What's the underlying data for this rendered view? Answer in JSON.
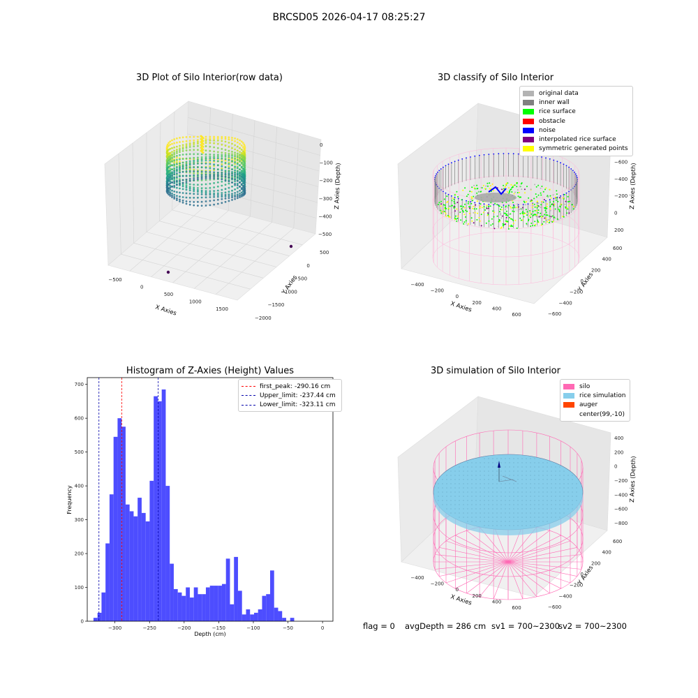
{
  "main_title": "BRCSD05 2026-04-17 08:25:27",
  "footer": {
    "flag": "flag = 0",
    "avg_depth": "avgDepth = 286 cm",
    "sv1": "sv1 = 700~2300",
    "sv2": "sv2 = 700~2300"
  },
  "chart_data": [
    {
      "type": "scatter",
      "title": "3D Plot of Silo Interior(row data)",
      "xlabel": "X Axies",
      "ylabel": "Y Axies",
      "zlabel": "Z Axies (Depth)",
      "x_ticks": [
        -500,
        0,
        500,
        1000,
        1500
      ],
      "y_ticks": [
        -2000,
        -1500,
        -1000,
        -500,
        0,
        500
      ],
      "z_ticks": [
        -500,
        -400,
        -300,
        -200,
        -100,
        0
      ],
      "xlim": [
        -700,
        1800
      ],
      "ylim": [
        -2000,
        700
      ],
      "zlim": [
        -560,
        50
      ],
      "colormap": "viridis",
      "outliers": [
        {
          "x": 450,
          "y": -1500,
          "z": -500
        },
        {
          "x": 500,
          "y": 700,
          "z": -500
        }
      ]
    },
    {
      "type": "scatter",
      "title": "3D classify of Silo Interior",
      "xlabel": "X Axies",
      "ylabel": "Y Axies",
      "zlabel": "Z Axies (Depth)",
      "x_ticks": [
        -400,
        -200,
        0,
        200,
        400,
        600
      ],
      "y_ticks": [
        -600,
        -400,
        -200,
        0,
        200,
        400,
        600
      ],
      "z_ticks": [
        -800,
        -600,
        -400,
        -200,
        0,
        200
      ],
      "legend": [
        {
          "label": "original data",
          "color": "#b3b3b3"
        },
        {
          "label": "inner wall",
          "color": "#808080"
        },
        {
          "label": "rice surface",
          "color": "#00ff00"
        },
        {
          "label": "obstacle",
          "color": "#ff0000"
        },
        {
          "label": "noise",
          "color": "#0000ff"
        },
        {
          "label": "interpolated rice surface",
          "color": "#800080"
        },
        {
          "label": "symmetric generated points",
          "color": "#ffff00"
        }
      ],
      "legend_position": "top-right"
    },
    {
      "type": "bar",
      "title": "Histogram of Z-Axies (Height) Values",
      "xlabel": "Depth (cm)",
      "ylabel": "Frequency",
      "bin_width": 5.8,
      "bin_start": -331,
      "values": [
        10,
        25,
        85,
        230,
        375,
        545,
        600,
        575,
        345,
        325,
        310,
        365,
        320,
        295,
        415,
        665,
        650,
        685,
        400,
        170,
        95,
        85,
        75,
        100,
        70,
        100,
        80,
        80,
        100,
        105,
        105,
        105,
        110,
        185,
        50,
        190,
        90,
        20,
        35,
        20,
        25,
        35,
        75,
        80,
        150,
        40,
        30,
        10,
        0,
        10
      ],
      "xlim": [
        -340,
        15
      ],
      "ylim": [
        0,
        720
      ],
      "x_ticks": [
        -300,
        -250,
        -200,
        -150,
        -100,
        -50,
        0
      ],
      "y_ticks": [
        0,
        100,
        200,
        300,
        400,
        500,
        600,
        700
      ],
      "bar_color": "#4d4dff",
      "vlines": [
        {
          "label": "first_peak: -290.16 cm",
          "x": -290.16,
          "color": "#ff0000"
        },
        {
          "label": "Upper_limit: -237.44 cm",
          "x": -237.44,
          "color": "#0000aa"
        },
        {
          "label": "Lower_limit: -323.11 cm",
          "x": -323.11,
          "color": "#0000aa"
        }
      ],
      "legend_position": "top-right"
    },
    {
      "type": "scatter",
      "title": "3D simulation of Silo Interior",
      "xlabel": "X Axies",
      "ylabel": "Y Axies",
      "zlabel": "Z Axies (Depth)",
      "x_ticks": [
        -400,
        -200,
        0,
        200,
        400,
        600
      ],
      "y_ticks": [
        -600,
        -400,
        -200,
        0,
        200,
        400,
        600
      ],
      "z_ticks": [
        -800,
        -600,
        -400,
        -200,
        0,
        200,
        400
      ],
      "legend": [
        {
          "label": "silo",
          "color": "#ff69b4"
        },
        {
          "label": "rice simulation",
          "color": "#87ceeb"
        },
        {
          "label": "auger",
          "color": "#ff4500"
        },
        {
          "label": "center(99,-10)",
          "color": "#ffffff"
        }
      ],
      "legend_position": "top-right"
    }
  ]
}
